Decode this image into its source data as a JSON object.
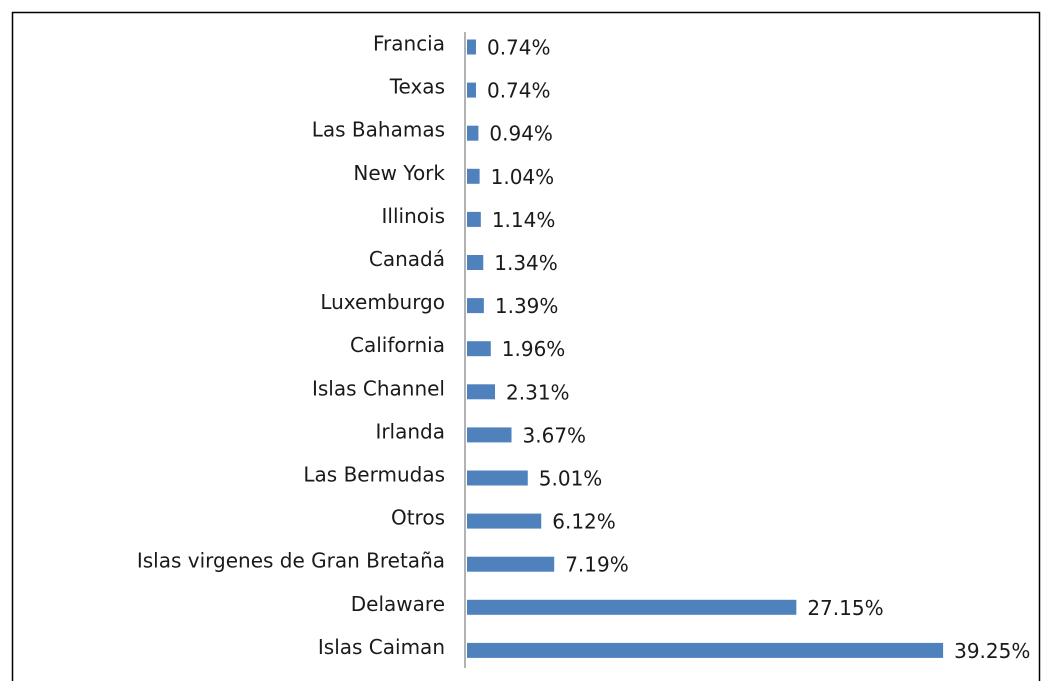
{
  "chart_data": {
    "type": "bar",
    "orientation": "horizontal",
    "color": "#4f81bd",
    "categories": [
      "Francia",
      "Texas",
      "Las Bahamas",
      "New York",
      "Illinois",
      "Canadá",
      "Luxemburgo",
      "California",
      "Islas Channel",
      "Irlanda",
      "Las Bermudas",
      "Otros",
      "Islas virgenes de Gran Bretaña",
      "Delaware",
      "Islas Caiman"
    ],
    "values": [
      0.74,
      0.74,
      0.94,
      1.04,
      1.14,
      1.34,
      1.39,
      1.96,
      2.31,
      3.67,
      5.01,
      6.12,
      7.19,
      27.15,
      39.25
    ],
    "value_labels": [
      "0.74%",
      "0.74%",
      "0.94%",
      "1.04%",
      "1.14%",
      "1.34%",
      "1.39%",
      "1.96%",
      "2.31%",
      "3.67%",
      "5.01%",
      "6.12%",
      "7.19%",
      "27.15%",
      "39.25%"
    ]
  }
}
